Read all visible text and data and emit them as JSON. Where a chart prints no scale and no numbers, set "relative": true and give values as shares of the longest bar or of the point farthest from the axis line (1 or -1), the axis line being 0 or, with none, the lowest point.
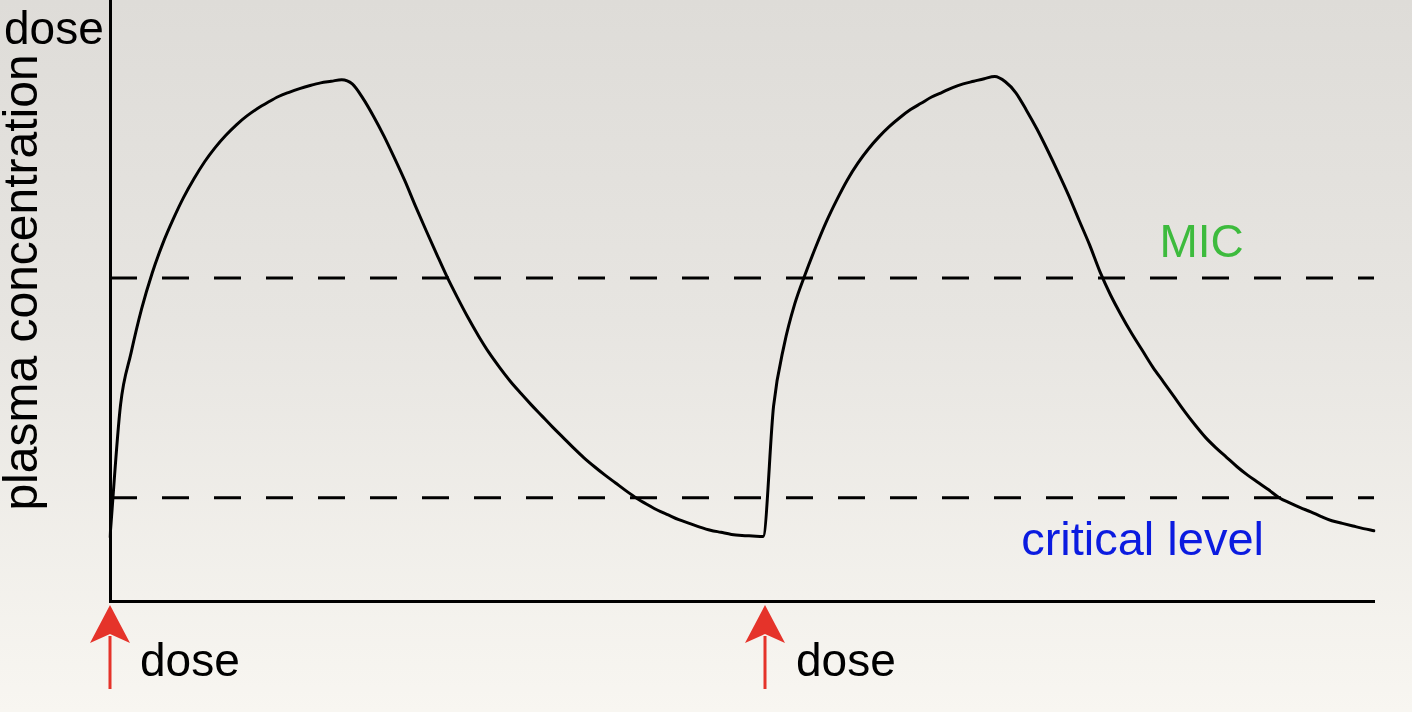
{
  "chart_data": {
    "type": "line",
    "ylabel": "plasma concentration",
    "relative": true,
    "categories": [
      null,
      null,
      null,
      null,
      null,
      null,
      null,
      null,
      null,
      null,
      null,
      null,
      null,
      null,
      null,
      null,
      null,
      null,
      null,
      null,
      null,
      null,
      null,
      null,
      null,
      null,
      null,
      null,
      null,
      null,
      null,
      null,
      null,
      null,
      null,
      null,
      null,
      null,
      null,
      null,
      null,
      null,
      null,
      null,
      null,
      null,
      null,
      null,
      null,
      null,
      null,
      null,
      null,
      null,
      null,
      null,
      null,
      null,
      null,
      null,
      null,
      null,
      null,
      null,
      null,
      null,
      null,
      null,
      null,
      null,
      null,
      null,
      null,
      null,
      null,
      null,
      null,
      null,
      null,
      null,
      null,
      null,
      null,
      null,
      null,
      null,
      null,
      null,
      null,
      null,
      null,
      null,
      null,
      null,
      null,
      null,
      null,
      null,
      null,
      null,
      null,
      null,
      null,
      null,
      null,
      null,
      null,
      null,
      null,
      null,
      null,
      null,
      null,
      null,
      null,
      null,
      null,
      null,
      null,
      null,
      null
    ],
    "series": [
      {
        "color": "#000000",
        "values": [
          0.122,
          0.374,
          0.473,
          0.557,
          0.625,
          0.681,
          0.728,
          0.77,
          0.806,
          0.838,
          0.865,
          0.888,
          0.908,
          0.925,
          0.939,
          0.951,
          0.962,
          0.97,
          0.977,
          0.983,
          0.988,
          0.991,
          0.994,
          0.986,
          0.959,
          0.925,
          0.887,
          0.845,
          0.801,
          0.753,
          0.707,
          0.662,
          0.618,
          0.578,
          0.54,
          0.505,
          0.473,
          0.445,
          0.419,
          0.396,
          0.374,
          0.353,
          0.332,
          0.312,
          0.292,
          0.273,
          0.256,
          0.24,
          0.225,
          0.21,
          0.196,
          0.184,
          0.173,
          0.164,
          0.155,
          0.148,
          0.141,
          0.135,
          0.131,
          0.127,
          0.125,
          0.124,
          0.123,
          0.372,
          0.488,
          0.566,
          0.623,
          0.675,
          0.723,
          0.765,
          0.803,
          0.835,
          0.862,
          0.885,
          0.905,
          0.922,
          0.937,
          0.949,
          0.961,
          0.97,
          0.979,
          0.986,
          0.991,
          0.996,
          1,
          0.99,
          0.969,
          0.936,
          0.9,
          0.86,
          0.818,
          0.774,
          0.726,
          0.679,
          0.627,
          0.583,
          0.545,
          0.51,
          0.478,
          0.446,
          0.418,
          0.39,
          0.362,
          0.336,
          0.312,
          0.292,
          0.274,
          0.256,
          0.24,
          0.226,
          0.212,
          0.197,
          0.187,
          0.178,
          0.17,
          0.161,
          0.153,
          0.148,
          0.143,
          0.138,
          0.134
        ]
      }
    ],
    "ref_lines": [
      {
        "axis": "y",
        "value": 0.616,
        "label": "MIC",
        "line_style": "dashed"
      },
      {
        "axis": "y",
        "value": 0.197,
        "label": "critical level",
        "line_style": "dashed"
      }
    ],
    "annotations": [
      "dose",
      "dose",
      "dose"
    ]
  }
}
